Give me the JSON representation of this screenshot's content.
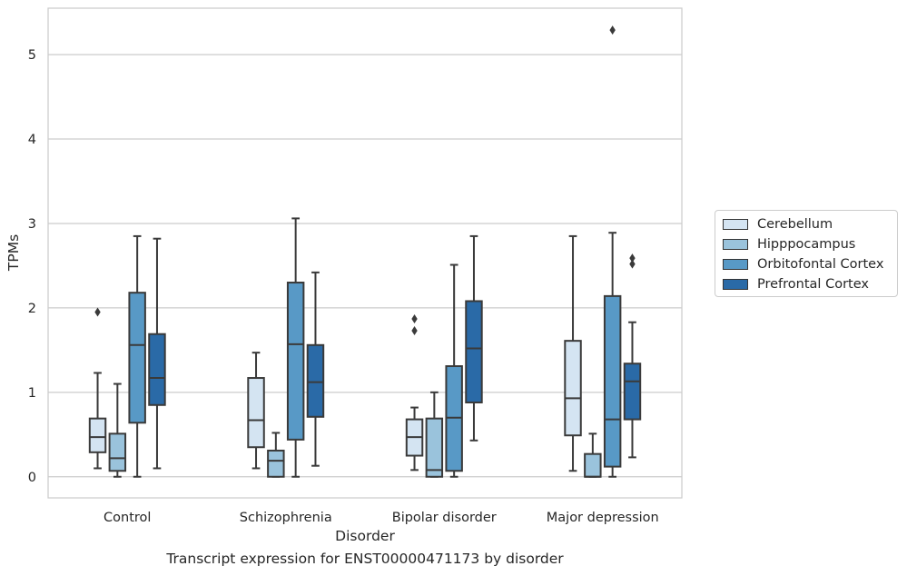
{
  "caption": "Transcript expression for ENST00000471173 by disorder",
  "chart_data": {
    "type": "box",
    "xlabel": "Disorder",
    "ylabel": "TPMs",
    "ylim": [
      -0.25,
      5.55
    ],
    "yticks": [
      0,
      1,
      2,
      3,
      4,
      5
    ],
    "grid": true,
    "legend_position": "right",
    "categories": [
      "Control",
      "Schizophrenia",
      "Bipolar disorder",
      "Major depression"
    ],
    "series": [
      {
        "name": "Cerebellum",
        "color": "#d4e4f2",
        "boxes": [
          {
            "whislo": 0.1,
            "q1": 0.29,
            "med": 0.47,
            "q3": 0.69,
            "whishi": 1.23,
            "fliers": [
              1.95
            ]
          },
          {
            "whislo": 0.1,
            "q1": 0.35,
            "med": 0.67,
            "q3": 1.17,
            "whishi": 1.47,
            "fliers": []
          },
          {
            "whislo": 0.08,
            "q1": 0.25,
            "med": 0.47,
            "q3": 0.68,
            "whishi": 0.82,
            "fliers": [
              1.73,
              1.87
            ]
          },
          {
            "whislo": 0.07,
            "q1": 0.49,
            "med": 0.93,
            "q3": 1.61,
            "whishi": 2.85,
            "fliers": []
          }
        ]
      },
      {
        "name": "Hipppocampus",
        "color": "#9ac3dc",
        "boxes": [
          {
            "whislo": 0.0,
            "q1": 0.07,
            "med": 0.22,
            "q3": 0.51,
            "whishi": 1.1,
            "fliers": []
          },
          {
            "whislo": 0.0,
            "q1": 0.0,
            "med": 0.19,
            "q3": 0.31,
            "whishi": 0.52,
            "fliers": []
          },
          {
            "whislo": 0.0,
            "q1": 0.0,
            "med": 0.08,
            "q3": 0.69,
            "whishi": 1.0,
            "fliers": []
          },
          {
            "whislo": 0.0,
            "q1": 0.0,
            "med": 0.0,
            "q3": 0.27,
            "whishi": 0.51,
            "fliers": []
          }
        ]
      },
      {
        "name": "Orbitofontal Cortex",
        "color": "#5899c6",
        "boxes": [
          {
            "whislo": 0.0,
            "q1": 0.64,
            "med": 1.56,
            "q3": 2.18,
            "whishi": 2.85,
            "fliers": []
          },
          {
            "whislo": 0.0,
            "q1": 0.44,
            "med": 1.57,
            "q3": 2.3,
            "whishi": 3.06,
            "fliers": []
          },
          {
            "whislo": 0.0,
            "q1": 0.07,
            "med": 0.7,
            "q3": 1.31,
            "whishi": 2.51,
            "fliers": []
          },
          {
            "whislo": 0.0,
            "q1": 0.12,
            "med": 0.68,
            "q3": 2.14,
            "whishi": 2.89,
            "fliers": [
              5.29
            ]
          }
        ]
      },
      {
        "name": "Prefrontal Cortex",
        "color": "#2a6aa7",
        "boxes": [
          {
            "whislo": 0.1,
            "q1": 0.85,
            "med": 1.17,
            "q3": 1.69,
            "whishi": 2.82,
            "fliers": []
          },
          {
            "whislo": 0.13,
            "q1": 0.71,
            "med": 1.12,
            "q3": 1.56,
            "whishi": 2.42,
            "fliers": []
          },
          {
            "whislo": 0.43,
            "q1": 0.88,
            "med": 1.52,
            "q3": 2.08,
            "whishi": 2.85,
            "fliers": []
          },
          {
            "whislo": 0.23,
            "q1": 0.68,
            "med": 1.13,
            "q3": 1.34,
            "whishi": 1.83,
            "fliers": [
              2.52,
              2.59
            ]
          }
        ]
      }
    ]
  }
}
